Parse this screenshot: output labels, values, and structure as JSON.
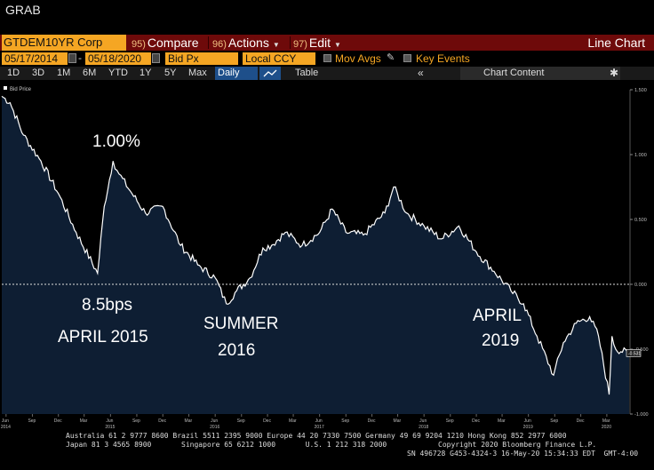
{
  "window": {
    "title": "GRAB"
  },
  "toolbar": {
    "ticker": "GTDEM10YR Corp",
    "compare": {
      "num": "95)",
      "label": "Compare"
    },
    "actions": {
      "num": "96)",
      "label": "Actions"
    },
    "edit": {
      "num": "97)",
      "label": "Edit"
    },
    "view_title": "Line Chart"
  },
  "range": {
    "start_date": "05/17/2014",
    "end_date": "05/18/2020",
    "field": "Bid Px",
    "currency": "Local CCY",
    "mov_avgs": "Mov Avgs",
    "key_events": "Key Events"
  },
  "periods": [
    "1D",
    "3D",
    "1M",
    "6M",
    "YTD",
    "1Y",
    "5Y",
    "Max"
  ],
  "frequency": "Daily",
  "table_label": "Table",
  "chart_content_label": "Chart Content",
  "legend_label": "Bid Price",
  "annotations": [
    {
      "id": "peak",
      "text": "1.00%"
    },
    {
      "id": "low2015",
      "text": "8.5bps"
    },
    {
      "id": "low2015b",
      "text": "APRIL 2015"
    },
    {
      "id": "summer",
      "text": "SUMMER"
    },
    {
      "id": "summer_b",
      "text": "2016"
    },
    {
      "id": "apr2019",
      "text": "APRIL"
    },
    {
      "id": "apr2019_b",
      "text": "2019"
    }
  ],
  "chart_data": {
    "type": "area",
    "series": [
      {
        "name": "Bid Price",
        "x": [
          "2014-05-17",
          "2014-06-15",
          "2014-08-01",
          "2014-10-01",
          "2014-12-01",
          "2015-02-01",
          "2015-04-17",
          "2015-05-10",
          "2015-06-10",
          "2015-07-01",
          "2015-08-15",
          "2015-10-01",
          "2015-12-01",
          "2016-02-01",
          "2016-04-01",
          "2016-06-01",
          "2016-07-10",
          "2016-08-15",
          "2016-10-01",
          "2016-11-15",
          "2016-12-15",
          "2017-02-01",
          "2017-04-01",
          "2017-06-01",
          "2017-07-15",
          "2017-09-01",
          "2017-11-01",
          "2018-01-15",
          "2018-02-15",
          "2018-04-01",
          "2018-06-01",
          "2018-08-01",
          "2018-10-01",
          "2018-12-01",
          "2019-02-01",
          "2019-04-01",
          "2019-05-15",
          "2019-07-01",
          "2019-08-28",
          "2019-10-01",
          "2019-11-15",
          "2020-01-01",
          "2020-02-01",
          "2020-03-09",
          "2020-03-19",
          "2020-04-01",
          "2020-05-18"
        ],
        "values": [
          1.45,
          1.4,
          1.15,
          0.95,
          0.7,
          0.4,
          0.085,
          0.6,
          0.95,
          0.85,
          0.7,
          0.55,
          0.6,
          0.3,
          0.15,
          0.05,
          -0.15,
          -0.05,
          0.05,
          0.28,
          0.3,
          0.4,
          0.3,
          0.4,
          0.58,
          0.4,
          0.38,
          0.55,
          0.75,
          0.55,
          0.45,
          0.35,
          0.45,
          0.25,
          0.1,
          -0.05,
          -0.15,
          -0.4,
          -0.7,
          -0.45,
          -0.3,
          -0.25,
          -0.4,
          -0.85,
          -0.4,
          -0.5,
          -0.53
        ]
      }
    ],
    "ylim": [
      -1.0,
      1.5
    ],
    "yticks": [
      "1.500",
      "1.000",
      "0.500",
      "0.000",
      "-0.500",
      "-1.000"
    ],
    "reference_line": 0.0,
    "last_value_label": "-0.531",
    "xticks_top": [
      "Jun",
      "Sep",
      "Dec",
      "Mar",
      "Jun",
      "Sep",
      "Dec",
      "Mar",
      "Jun",
      "Sep",
      "Dec",
      "Mar",
      "Jun",
      "Sep",
      "Dec",
      "Mar",
      "Jun",
      "Sep",
      "Dec",
      "Mar",
      "Jun",
      "Sep",
      "Dec",
      "Mar"
    ],
    "xticks_years": [
      "2014",
      "2015",
      "2016",
      "2017",
      "2018",
      "2019",
      "2020"
    ],
    "line_color": "#ffffff",
    "fill_color": "#0e1e33",
    "grid": false
  },
  "footer": {
    "line1": "Australia 61 2 9777 8600 Brazil 5511 2395 9000 Europe 44 20 7330 7500 Germany 49 69 9204 1210 Hong Kong 852 2977 6000",
    "line2": "Japan 81 3 4565 8900       Singapore 65 6212 1000       U.S. 1 212 318 2000            Copyright 2020 Bloomberg Finance L.P.",
    "line3": "SN 496728 G453-4324-3 16-May-20 15:34:33 EDT  GMT-4:00"
  }
}
